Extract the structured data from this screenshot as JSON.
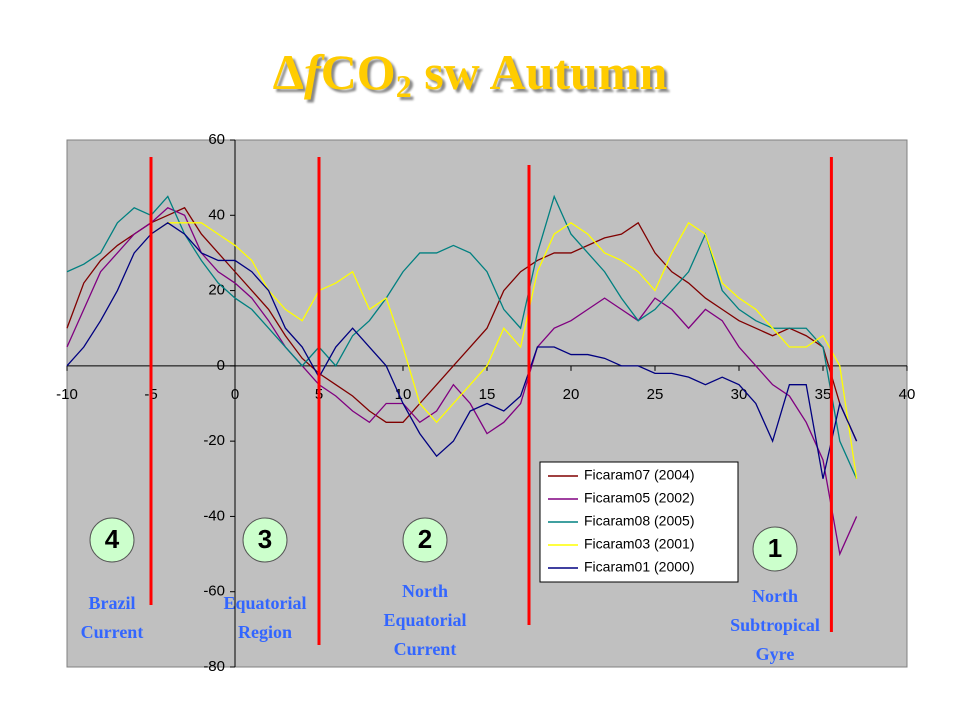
{
  "chart_data": {
    "type": "line",
    "title_parts": [
      "Δ",
      "f",
      "CO",
      "2",
      " sw  Autumn"
    ],
    "x": [
      -10,
      -9,
      -8,
      -7,
      -6,
      -5,
      -4,
      -3,
      -2,
      -1,
      0,
      1,
      2,
      3,
      4,
      5,
      6,
      7,
      8,
      9,
      10,
      11,
      12,
      13,
      14,
      15,
      16,
      17,
      18,
      19,
      20,
      21,
      22,
      23,
      24,
      25,
      26,
      27,
      28,
      29,
      30,
      31,
      32,
      33,
      34,
      35,
      36,
      37
    ],
    "series": [
      {
        "name": "Ficaram07 (2004)",
        "color": "#800000",
        "values": [
          10,
          22,
          28,
          32,
          35,
          38,
          40,
          42,
          35,
          30,
          25,
          20,
          15,
          8,
          2,
          -2,
          -5,
          -8,
          -12,
          -15,
          -15,
          -10,
          -5,
          0,
          5,
          10,
          20,
          25,
          28,
          30,
          30,
          32,
          34,
          35,
          38,
          30,
          25,
          22,
          18,
          15,
          12,
          10,
          8,
          10,
          8,
          5,
          -10,
          -20
        ]
      },
      {
        "name": "Ficaram05 (2002)",
        "color": "#800080",
        "values": [
          5,
          15,
          25,
          30,
          35,
          38,
          42,
          40,
          30,
          25,
          22,
          18,
          12,
          5,
          0,
          -5,
          -8,
          -12,
          -15,
          -10,
          -10,
          -15,
          -12,
          -5,
          -10,
          -18,
          -15,
          -10,
          5,
          10,
          12,
          15,
          18,
          15,
          12,
          18,
          15,
          10,
          15,
          12,
          5,
          0,
          -5,
          -8,
          -15,
          -25,
          -50,
          -40
        ]
      },
      {
        "name": "Ficaram08 (2005)",
        "color": "#008080",
        "values": [
          25,
          27,
          30,
          38,
          42,
          40,
          45,
          35,
          28,
          22,
          18,
          15,
          10,
          5,
          0,
          5,
          0,
          8,
          12,
          18,
          25,
          30,
          30,
          32,
          30,
          25,
          15,
          10,
          30,
          45,
          35,
          30,
          25,
          18,
          12,
          15,
          20,
          25,
          35,
          20,
          15,
          12,
          10,
          10,
          10,
          5,
          -20,
          -30
        ]
      },
      {
        "name": "Ficaram03 (2001)",
        "color": "#ffff00",
        "values": [
          null,
          null,
          null,
          null,
          null,
          35,
          38,
          38,
          38,
          35,
          32,
          28,
          20,
          15,
          12,
          20,
          22,
          25,
          15,
          18,
          5,
          -10,
          -15,
          -10,
          -5,
          0,
          10,
          5,
          25,
          35,
          38,
          35,
          30,
          28,
          25,
          20,
          30,
          38,
          35,
          22,
          18,
          15,
          10,
          5,
          5,
          8,
          0,
          -30
        ]
      },
      {
        "name": "Ficaram01 (2000)",
        "color": "#000080",
        "values": [
          0,
          5,
          12,
          20,
          30,
          35,
          38,
          35,
          30,
          28,
          28,
          25,
          20,
          10,
          5,
          -3,
          5,
          10,
          5,
          0,
          -10,
          -18,
          -24,
          -20,
          -12,
          -10,
          -12,
          -8,
          5,
          5,
          3,
          3,
          2,
          0,
          0,
          -2,
          -2,
          -3,
          -5,
          -3,
          -5,
          -10,
          -20,
          -5,
          -5,
          -30,
          -10,
          -20
        ]
      }
    ],
    "xlim": [
      -10,
      40
    ],
    "ylim": [
      -80,
      60
    ],
    "xticks": [
      -10,
      -5,
      0,
      5,
      10,
      15,
      20,
      25,
      30,
      35,
      40
    ],
    "yticks": [
      -80,
      -60,
      -40,
      -20,
      0,
      20,
      40,
      60
    ],
    "region_boundaries": [
      -5,
      5,
      17.5,
      35.5
    ],
    "regions": [
      {
        "number": "4",
        "label": [
          "Brazil",
          "Current"
        ]
      },
      {
        "number": "3",
        "label": [
          "Equatorial",
          "Region"
        ]
      },
      {
        "number": "2",
        "label": [
          "North",
          "Equatorial",
          "Current"
        ]
      },
      {
        "number": "1",
        "label": [
          "North",
          "Subtropical",
          "Gyre"
        ]
      }
    ]
  }
}
